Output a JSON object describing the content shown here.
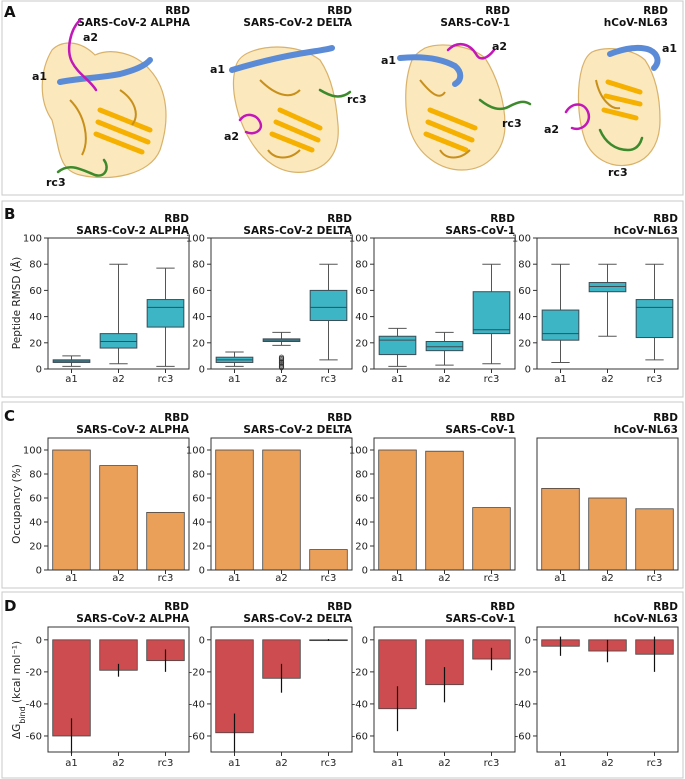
{
  "panel_letters": [
    "A",
    "B",
    "C",
    "D"
  ],
  "structures": [
    {
      "title_line1": "RBD",
      "title_line2": "SARS-CoV-2 ALPHA",
      "labels": [
        "a1",
        "a2",
        "rc3"
      ]
    },
    {
      "title_line1": "RBD",
      "title_line2": "SARS-CoV-2 DELTA",
      "labels": [
        "a1",
        "a2",
        "rc3"
      ]
    },
    {
      "title_line1": "RBD",
      "title_line2": "SARS-CoV-1",
      "labels": [
        "a1",
        "a2",
        "rc3"
      ]
    },
    {
      "title_line1": "RBD",
      "title_line2": "hCoV-NL63",
      "labels": [
        "a1",
        "a2",
        "rc3"
      ]
    }
  ],
  "colors": {
    "surface": "#fbe6b6",
    "surface_edge": "#d9b26a",
    "strand": "#f5b000",
    "coil": "#c8901a",
    "a1": "#5b8bd6",
    "a2": "#c218b8",
    "rc3": "#3d8a2c",
    "box": "#3eb5c4",
    "bar_occ": "#eba05a",
    "bar_dg": "#cd4c4f"
  },
  "chart_data": [
    {
      "panel": "B",
      "type": "box",
      "title_line1": "RBD",
      "title_line2": "SARS-CoV-2 ALPHA",
      "ylabel": "Peptide RMSD (Å)",
      "ylim": [
        0,
        100
      ],
      "yticks": [
        0,
        20,
        40,
        60,
        80,
        100
      ],
      "show_yticks": true,
      "categories": [
        "a1",
        "a2",
        "rc3"
      ],
      "boxes": [
        {
          "min": 2,
          "q1": 5,
          "median": 6,
          "q3": 7,
          "max": 10,
          "outliers": []
        },
        {
          "min": 4,
          "q1": 16,
          "median": 21,
          "q3": 27,
          "max": 80,
          "outliers": []
        },
        {
          "min": 2,
          "q1": 32,
          "median": 47,
          "q3": 53,
          "max": 77,
          "outliers": []
        }
      ]
    },
    {
      "panel": "B",
      "type": "box",
      "title_line1": "RBD",
      "title_line2": "SARS-CoV-2 DELTA",
      "ylabel": "",
      "ylim": [
        0,
        100
      ],
      "yticks": [
        0,
        20,
        40,
        60,
        80,
        100
      ],
      "show_yticks": true,
      "categories": [
        "a1",
        "a2",
        "rc3"
      ],
      "boxes": [
        {
          "min": 2,
          "q1": 5,
          "median": 7,
          "q3": 9,
          "max": 13,
          "outliers": []
        },
        {
          "min": 18,
          "q1": 21,
          "median": 22,
          "q3": 23,
          "max": 28,
          "outliers": [
            1,
            2,
            3,
            4,
            5,
            6,
            7,
            8,
            9
          ]
        },
        {
          "min": 7,
          "q1": 37,
          "median": 47,
          "q3": 60,
          "max": 80,
          "outliers": []
        }
      ]
    },
    {
      "panel": "B",
      "type": "box",
      "title_line1": "RBD",
      "title_line2": "SARS-CoV-1",
      "ylabel": "",
      "ylim": [
        0,
        100
      ],
      "yticks": [
        0,
        20,
        40,
        60,
        80,
        100
      ],
      "show_yticks": true,
      "categories": [
        "a1",
        "a2",
        "rc3"
      ],
      "boxes": [
        {
          "min": 2,
          "q1": 11,
          "median": 22,
          "q3": 25,
          "max": 31,
          "outliers": []
        },
        {
          "min": 3,
          "q1": 14,
          "median": 17,
          "q3": 21,
          "max": 28,
          "outliers": []
        },
        {
          "min": 4,
          "q1": 27,
          "median": 30,
          "q3": 59,
          "max": 80,
          "outliers": []
        }
      ]
    },
    {
      "panel": "B",
      "type": "box",
      "title_line1": "RBD",
      "title_line2": "hCoV-NL63",
      "ylabel": "",
      "ylim": [
        0,
        100
      ],
      "yticks": [
        0,
        20,
        40,
        60,
        80,
        100
      ],
      "show_yticks": true,
      "categories": [
        "a1",
        "a2",
        "rc3"
      ],
      "boxes": [
        {
          "min": 5,
          "q1": 22,
          "median": 27,
          "q3": 45,
          "max": 80,
          "outliers": []
        },
        {
          "min": 25,
          "q1": 59,
          "median": 63,
          "q3": 66,
          "max": 80,
          "outliers": []
        },
        {
          "min": 7,
          "q1": 24,
          "median": 47,
          "q3": 53,
          "max": 80,
          "outliers": []
        }
      ]
    },
    {
      "panel": "C",
      "type": "bar",
      "title_line1": "RBD",
      "title_line2": "SARS-CoV-2 ALPHA",
      "ylabel": "Occupancy (%)",
      "ylim": [
        0,
        110
      ],
      "yticks": [
        0,
        20,
        40,
        60,
        80,
        100
      ],
      "show_yticks": true,
      "categories": [
        "a1",
        "a2",
        "rc3"
      ],
      "values": [
        100,
        87,
        48
      ]
    },
    {
      "panel": "C",
      "type": "bar",
      "title_line1": "RBD",
      "title_line2": "SARS-CoV-2 DELTA",
      "ylabel": "",
      "ylim": [
        0,
        110
      ],
      "yticks": [
        0,
        20,
        40,
        60,
        80,
        100
      ],
      "show_yticks": true,
      "categories": [
        "a1",
        "a2",
        "rc3"
      ],
      "values": [
        100,
        100,
        17
      ]
    },
    {
      "panel": "C",
      "type": "bar",
      "title_line1": "RBD",
      "title_line2": "SARS-CoV-1",
      "ylabel": "",
      "ylim": [
        0,
        110
      ],
      "yticks": [
        0,
        20,
        40,
        60,
        80,
        100
      ],
      "show_yticks": true,
      "categories": [
        "a1",
        "a2",
        "rc3"
      ],
      "values": [
        100,
        99,
        52
      ]
    },
    {
      "panel": "C",
      "type": "bar",
      "title_line1": "RBD",
      "title_line2": "hCoV-NL63",
      "ylabel": "",
      "ylim": [
        0,
        110
      ],
      "yticks": [
        0,
        20,
        40,
        60,
        80,
        100
      ],
      "show_yticks": false,
      "categories": [
        "a1",
        "a2",
        "rc3"
      ],
      "values": [
        68,
        60,
        51
      ]
    },
    {
      "panel": "D",
      "type": "bar_err",
      "title_line1": "RBD",
      "title_line2": "SARS-CoV-2 ALPHA",
      "ylabel": "ΔG_bind (kcal mol⁻¹)",
      "ylim": [
        -70,
        8
      ],
      "yticks": [
        0,
        -20,
        -40,
        -60
      ],
      "show_yticks": true,
      "categories": [
        "a1",
        "a2",
        "rc3"
      ],
      "values": [
        -60,
        -19,
        -13
      ],
      "errors": [
        11,
        4,
        7
      ]
    },
    {
      "panel": "D",
      "type": "bar_err",
      "title_line1": "RBD",
      "title_line2": "SARS-CoV-2 DELTA",
      "ylabel": "",
      "ylim": [
        -70,
        8
      ],
      "yticks": [
        0,
        -20,
        -40,
        -60
      ],
      "show_yticks": true,
      "categories": [
        "a1",
        "a2",
        "rc3"
      ],
      "values": [
        -58,
        -24,
        0
      ],
      "errors": [
        12,
        9,
        0.5
      ]
    },
    {
      "panel": "D",
      "type": "bar_err",
      "title_line1": "RBD",
      "title_line2": "SARS-CoV-1",
      "ylabel": "",
      "ylim": [
        -70,
        8
      ],
      "yticks": [
        0,
        -20,
        -40,
        -60
      ],
      "show_yticks": true,
      "categories": [
        "a1",
        "a2",
        "rc3"
      ],
      "values": [
        -43,
        -28,
        -12
      ],
      "errors": [
        14,
        11,
        7
      ]
    },
    {
      "panel": "D",
      "type": "bar_err",
      "title_line1": "RBD",
      "title_line2": "hCoV-NL63",
      "ylabel": "",
      "ylim": [
        -70,
        8
      ],
      "yticks": [
        0,
        -20,
        -40,
        -60
      ],
      "show_yticks": true,
      "categories": [
        "a1",
        "a2",
        "rc3"
      ],
      "values": [
        -4,
        -7,
        -9
      ],
      "errors": [
        6,
        7,
        11
      ]
    }
  ]
}
